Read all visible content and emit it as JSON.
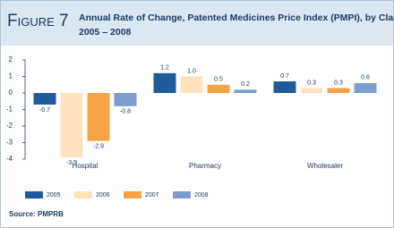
{
  "chart_data": {
    "type": "bar",
    "figure_label": "Figure 7",
    "title": "Annual Rate of Change, Patented Medicines Price Index (PMPI), by Class of Customer,",
    "title_line2": "2005 – 2008",
    "source": "Source: PMPRB",
    "categories": [
      "Hospital",
      "Pharmacy",
      "Wholesaler"
    ],
    "series": [
      {
        "name": "2005",
        "color": "#1f5a9c",
        "values": [
          -0.7,
          1.2,
          0.7
        ],
        "value_labels": [
          "-0.7",
          "1.2",
          "0.7"
        ]
      },
      {
        "name": "2006",
        "color": "#fde2bd",
        "values": [
          -3.9,
          1.0,
          0.3
        ],
        "value_labels": [
          "-3.9",
          "1.0",
          "0.3"
        ]
      },
      {
        "name": "2007",
        "color": "#f5a345",
        "values": [
          -2.9,
          0.5,
          0.3
        ],
        "value_labels": [
          "-2.9",
          "0.5",
          "0.3"
        ]
      },
      {
        "name": "2008",
        "color": "#7e9ccc",
        "values": [
          -0.8,
          0.2,
          0.6
        ],
        "value_labels": [
          "-0.8",
          "0.2",
          "0.6"
        ]
      }
    ],
    "ylim": [
      -4,
      2
    ],
    "yticks": [
      2,
      1,
      0,
      -1,
      -2,
      -3,
      -4
    ],
    "grid": false
  }
}
